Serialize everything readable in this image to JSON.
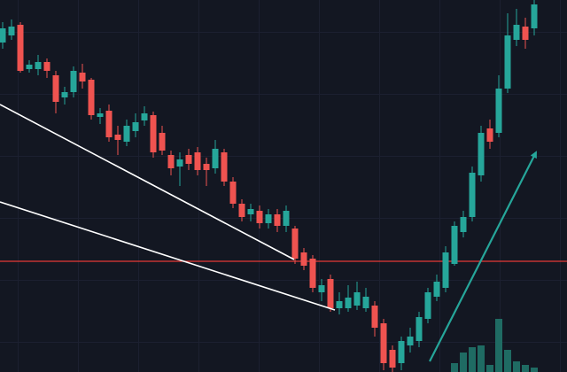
{
  "chart_data": {
    "type": "candlestick",
    "xlim": [
      -0.3,
      63.7
    ],
    "ylim": [
      0,
      420
    ],
    "volume_lim": [
      0,
      420
    ],
    "up_color": "#26a69a",
    "down_color": "#ef5350",
    "volume_color": "#1f6b63",
    "open": [
      372,
      380,
      392,
      342,
      342,
      350,
      335,
      310,
      316,
      338,
      330,
      288,
      295,
      268,
      260,
      272,
      284,
      290,
      270,
      245,
      232,
      245,
      248,
      235,
      230,
      248,
      215,
      190,
      178,
      182,
      168,
      178,
      165,
      162,
      135,
      128,
      90,
      105,
      72,
      72,
      75,
      72,
      75,
      55,
      25,
      10,
      30,
      35,
      60,
      85,
      95,
      122,
      158,
      175,
      222,
      275,
      270,
      320,
      375,
      390,
      388
    ],
    "high": [
      395,
      398,
      395,
      352,
      358,
      354,
      340,
      322,
      345,
      348,
      332,
      298,
      302,
      278,
      285,
      292,
      300,
      294,
      278,
      250,
      248,
      252,
      254,
      242,
      262,
      252,
      220,
      195,
      190,
      188,
      184,
      184,
      188,
      165,
      140,
      132,
      105,
      110,
      90,
      98,
      102,
      95,
      80,
      60,
      30,
      40,
      50,
      68,
      95,
      110,
      142,
      170,
      182,
      232,
      278,
      285,
      335,
      405,
      410,
      400,
      420
    ],
    "low": [
      365,
      375,
      338,
      338,
      335,
      332,
      292,
      302,
      310,
      320,
      285,
      280,
      260,
      245,
      255,
      265,
      278,
      242,
      245,
      222,
      210,
      228,
      222,
      210,
      224,
      210,
      185,
      170,
      170,
      162,
      162,
      158,
      158,
      122,
      115,
      90,
      80,
      68,
      65,
      68,
      70,
      68,
      40,
      2,
      0,
      2,
      22,
      28,
      55,
      80,
      90,
      120,
      152,
      170,
      215,
      252,
      265,
      315,
      368,
      365,
      380
    ],
    "close": [
      388,
      390,
      340,
      347,
      350,
      340,
      305,
      316,
      340,
      328,
      290,
      292,
      265,
      262,
      278,
      282,
      292,
      248,
      250,
      230,
      240,
      235,
      228,
      228,
      252,
      215,
      190,
      175,
      184,
      168,
      178,
      165,
      182,
      128,
      120,
      95,
      98,
      72,
      80,
      84,
      90,
      85,
      50,
      10,
      5,
      35,
      40,
      62,
      90,
      102,
      135,
      165,
      175,
      225,
      270,
      260,
      320,
      380,
      392,
      375,
      415
    ],
    "volume": [
      null,
      null,
      null,
      null,
      null,
      null,
      null,
      null,
      null,
      null,
      null,
      null,
      null,
      null,
      null,
      null,
      null,
      null,
      null,
      null,
      null,
      null,
      null,
      null,
      null,
      null,
      null,
      null,
      null,
      null,
      null,
      null,
      null,
      null,
      null,
      null,
      null,
      null,
      null,
      null,
      null,
      null,
      null,
      null,
      null,
      null,
      null,
      null,
      null,
      null,
      null,
      10,
      22,
      28,
      30,
      8,
      60,
      25,
      12,
      8,
      5
    ],
    "hline": {
      "value": 125,
      "color": "#e53935"
    },
    "trendlines": [
      {
        "x": [
          -0.3,
          32.9
        ],
        "y": [
          302,
          127
        ],
        "color": "#ffffff"
      },
      {
        "x": [
          -0.3,
          37.5
        ],
        "y": [
          192,
          70
        ],
        "color": "#ffffff"
      }
    ],
    "arrow": {
      "x": [
        48.2,
        60.2
      ],
      "y": [
        12,
        248
      ],
      "color": "#26a69a"
    }
  }
}
